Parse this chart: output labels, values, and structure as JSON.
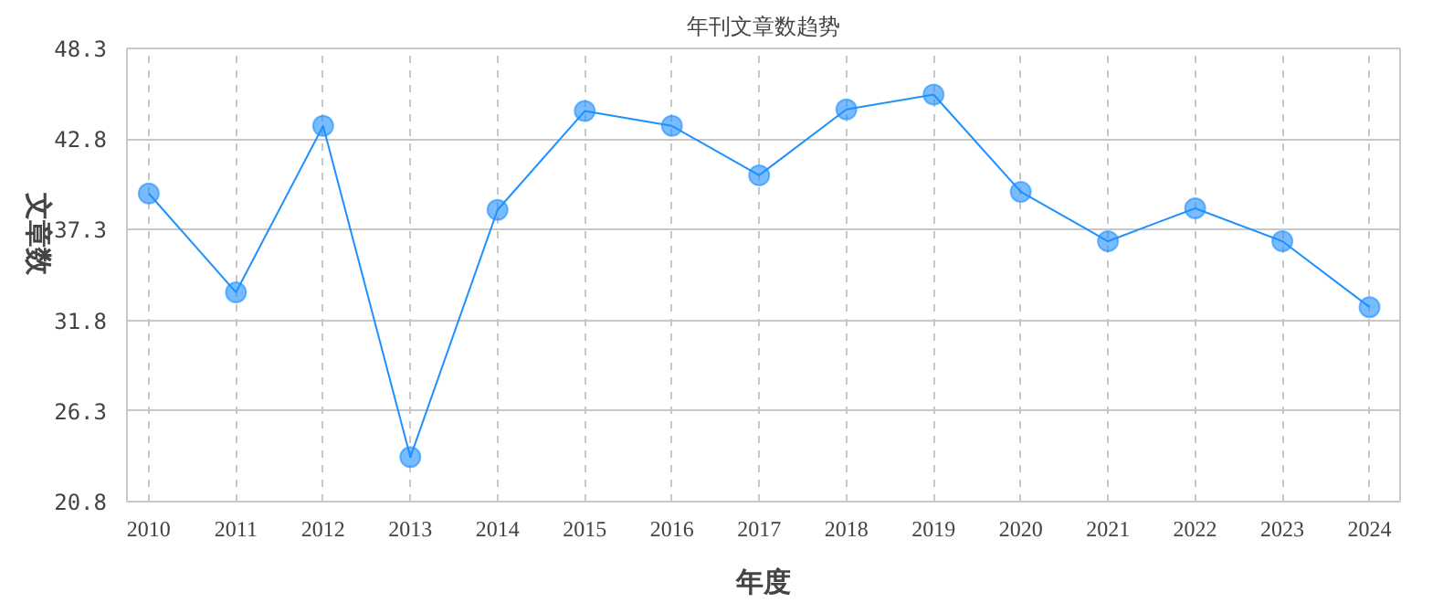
{
  "chart_data": {
    "type": "line",
    "title": "年刊文章数趋势",
    "xlabel": "年度",
    "ylabel": "文章数",
    "categories": [
      "2010",
      "2011",
      "2012",
      "2013",
      "2014",
      "2015",
      "2016",
      "2017",
      "2018",
      "2019",
      "2020",
      "2021",
      "2022",
      "2023",
      "2024"
    ],
    "series": [
      {
        "color": "#1e90ff",
        "values": [
          39.5,
          33.5,
          43.6,
          23.5,
          38.5,
          44.5,
          43.6,
          40.6,
          44.6,
          45.5,
          39.6,
          36.6,
          38.6,
          36.6,
          32.6
        ]
      }
    ],
    "ylim": [
      20.8,
      48.3
    ],
    "yticks": [
      {
        "value": 20.8,
        "label": "20.8"
      },
      {
        "value": 26.3,
        "label": "26.3"
      },
      {
        "value": 31.8,
        "label": "31.8"
      },
      {
        "value": 37.3,
        "label": "37.3"
      },
      {
        "value": 42.8,
        "label": "42.8"
      },
      {
        "value": 48.3,
        "label": "48.3"
      }
    ],
    "grid": true,
    "marker": "circle",
    "line_style": "solid"
  }
}
